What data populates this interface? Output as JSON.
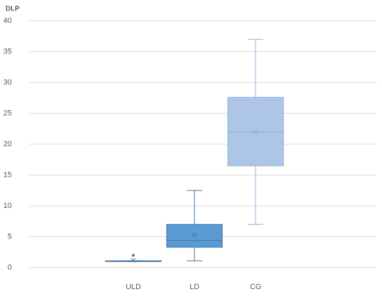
{
  "chart_data": {
    "type": "box",
    "y_label": "DLP",
    "categories": [
      "ULD",
      "LD",
      "CG"
    ],
    "min": [
      1,
      1.1,
      7
    ],
    "q1": [
      1,
      3.3,
      16.5
    ],
    "median": [
      1,
      4.4,
      22
    ],
    "q3": [
      1.1,
      7,
      27.6
    ],
    "max": [
      1.1,
      12.5,
      37
    ],
    "mean": [
      1.2,
      5.3,
      22
    ],
    "outliers": [
      [
        2
      ],
      [],
      []
    ],
    "colors": [
      "#5b9bd5",
      "#5b9bd5",
      "#adc5e6"
    ],
    "stroke_colors": [
      "#41719c",
      "#41719c",
      "#8eb0da"
    ],
    "ylim": [
      0,
      40
    ],
    "yticks": [
      0,
      5,
      10,
      15,
      20,
      25,
      30,
      35,
      40
    ],
    "grid": true
  }
}
